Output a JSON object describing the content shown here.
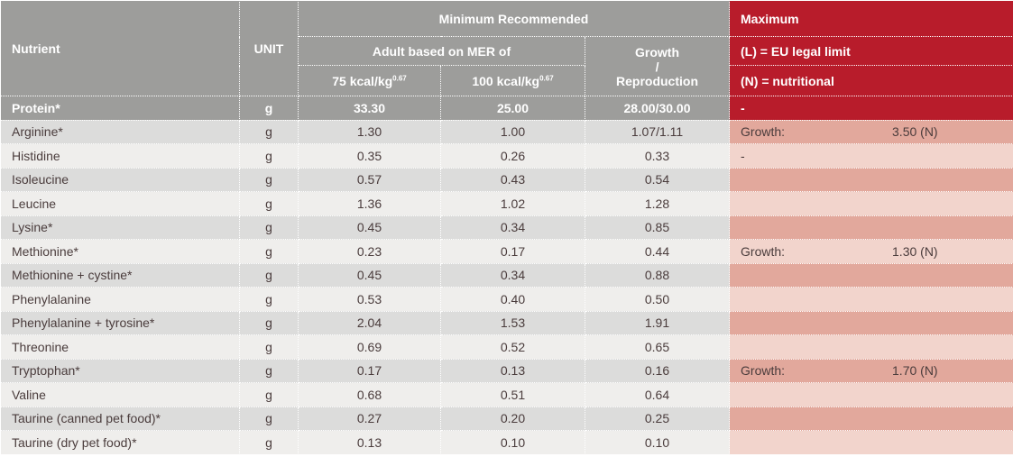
{
  "header": {
    "nutrient": "Nutrient",
    "unit": "UNIT",
    "min_rec": "Minimum Recommended",
    "adult": "Adult based on MER of",
    "col75": "75 kcal/kg",
    "col100": "100 kcal/kg",
    "exp": "0.67",
    "growth_a": "Growth",
    "growth_b": "/",
    "growth_c": "Reproduction",
    "maximum": "Maximum",
    "legal": "(L) = EU legal limit",
    "nutritional": "(N) = nutritional"
  },
  "colors": {
    "header_gray": "#9d9d9b",
    "red": "#b81c2b",
    "row_dark": "#dcdcdb",
    "row_light": "#efeeec",
    "pink_dark": "#e2a89c",
    "pink_light": "#f2d4cc"
  },
  "rows": [
    {
      "name": "Protein*",
      "unit": "g",
      "a75": "33.30",
      "a100": "25.00",
      "growth": "28.00/30.00",
      "max_label": "-",
      "max_value": ""
    },
    {
      "name": "Arginine*",
      "unit": "g",
      "a75": "1.30",
      "a100": "1.00",
      "growth": "1.07/1.11",
      "max_label": "Growth:",
      "max_value": "3.50 (N)"
    },
    {
      "name": "Histidine",
      "unit": "g",
      "a75": "0.35",
      "a100": "0.26",
      "growth": "0.33",
      "max_label": "-",
      "max_value": ""
    },
    {
      "name": "Isoleucine",
      "unit": "g",
      "a75": "0.57",
      "a100": "0.43",
      "growth": "0.54",
      "max_label": "",
      "max_value": ""
    },
    {
      "name": "Leucine",
      "unit": "g",
      "a75": "1.36",
      "a100": "1.02",
      "growth": "1.28",
      "max_label": "",
      "max_value": ""
    },
    {
      "name": "Lysine*",
      "unit": "g",
      "a75": "0.45",
      "a100": "0.34",
      "growth": "0.85",
      "max_label": "",
      "max_value": ""
    },
    {
      "name": "Methionine*",
      "unit": "g",
      "a75": "0.23",
      "a100": "0.17",
      "growth": "0.44",
      "max_label": "Growth:",
      "max_value": "1.30 (N)"
    },
    {
      "name": "Methionine + cystine*",
      "unit": "g",
      "a75": "0.45",
      "a100": "0.34",
      "growth": "0.88",
      "max_label": "",
      "max_value": ""
    },
    {
      "name": "Phenylalanine",
      "unit": "g",
      "a75": "0.53",
      "a100": "0.40",
      "growth": "0.50",
      "max_label": "",
      "max_value": ""
    },
    {
      "name": "Phenylalanine + tyrosine*",
      "unit": "g",
      "a75": "2.04",
      "a100": "1.53",
      "growth": "1.91",
      "max_label": "",
      "max_value": ""
    },
    {
      "name": "Threonine",
      "unit": "g",
      "a75": "0.69",
      "a100": "0.52",
      "growth": "0.65",
      "max_label": "",
      "max_value": ""
    },
    {
      "name": "Tryptophan*",
      "unit": "g",
      "a75": "0.17",
      "a100": "0.13",
      "growth": "0.16",
      "max_label": "Growth:",
      "max_value": "1.70 (N)"
    },
    {
      "name": "Valine",
      "unit": "g",
      "a75": "0.68",
      "a100": "0.51",
      "growth": "0.64",
      "max_label": "",
      "max_value": ""
    },
    {
      "name": "Taurine (canned pet food)*",
      "unit": "g",
      "a75": "0.27",
      "a100": "0.20",
      "growth": "0.25",
      "max_label": "",
      "max_value": ""
    },
    {
      "name": "Taurine (dry pet food)*",
      "unit": "g",
      "a75": "0.13",
      "a100": "0.10",
      "growth": "0.10",
      "max_label": "",
      "max_value": ""
    }
  ]
}
